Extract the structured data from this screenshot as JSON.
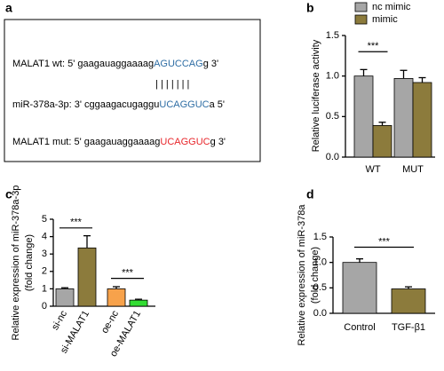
{
  "diagram": {
    "label": "a",
    "rows": [
      {
        "prefix": "MALAT1 wt: 5' gaagauaggaaaag",
        "site": "AGUCCAG",
        "suffix": "g 3'"
      },
      {
        "prefix": "miR-378a-3p: 3' cggaagacugaggu",
        "site": "UCAGGUC",
        "suffix": "a   5'"
      },
      {
        "prefix": "MALAT1 mut: 5' gaagauaggaaaag",
        "site": "UCAGGUC",
        "suffix": "g 3'"
      }
    ],
    "pairing": "| | | | | | |"
  },
  "chart_data": [
    {
      "type": "grouped-bar",
      "label": "b",
      "ylabel": [
        "Relative luciferase activity"
      ],
      "categories": [
        "WT",
        "MUT"
      ],
      "series": [
        {
          "name": "nc mimic",
          "color": "#a6a6a6",
          "values": [
            1.0,
            0.97
          ],
          "errors": [
            0.08,
            0.1
          ]
        },
        {
          "name": "mimic",
          "color": "#8c7b3c",
          "values": [
            0.39,
            0.92
          ],
          "errors": [
            0.04,
            0.06
          ]
        }
      ],
      "ylim": [
        0,
        1.5
      ],
      "yticks": [
        {
          "value": 0,
          "label": "0.0"
        },
        0.5,
        {
          "value": 1,
          "label": "1.0"
        },
        1.5
      ],
      "annotations": [
        "***"
      ]
    },
    {
      "type": "bar",
      "label": "c",
      "ylabel": [
        "Relative expression of miR-378a-3p",
        "(fold change)"
      ],
      "categories": [
        "si-nc",
        "si-MALAT1",
        "oe-nc",
        "oe-MALAT1"
      ],
      "values": [
        1.0,
        3.35,
        1.0,
        0.35
      ],
      "errors": [
        0.06,
        0.7,
        0.12,
        0.05
      ],
      "colors": [
        "#a6a6a6",
        "#8c7b3c",
        "#f7a24b",
        "#33dd33"
      ],
      "ylim": [
        0,
        5
      ],
      "yticks": [
        0,
        1,
        2,
        3,
        4,
        5
      ],
      "annotations": [
        "***",
        "***"
      ]
    },
    {
      "type": "bar",
      "label": "d",
      "ylabel": [
        "Relative expression of miR-378a",
        "(fold change)"
      ],
      "categories": [
        "Control",
        "TGF-β1"
      ],
      "values": [
        1.0,
        0.48
      ],
      "errors": [
        0.07,
        0.04
      ],
      "colors": [
        "#a6a6a6",
        "#8c7b3c"
      ],
      "ylim": [
        0,
        1.5
      ],
      "yticks": [
        {
          "value": 0,
          "label": "0.0"
        },
        0.5,
        {
          "value": 1,
          "label": "1.0"
        },
        1.5
      ],
      "annotations": [
        "***"
      ]
    }
  ]
}
